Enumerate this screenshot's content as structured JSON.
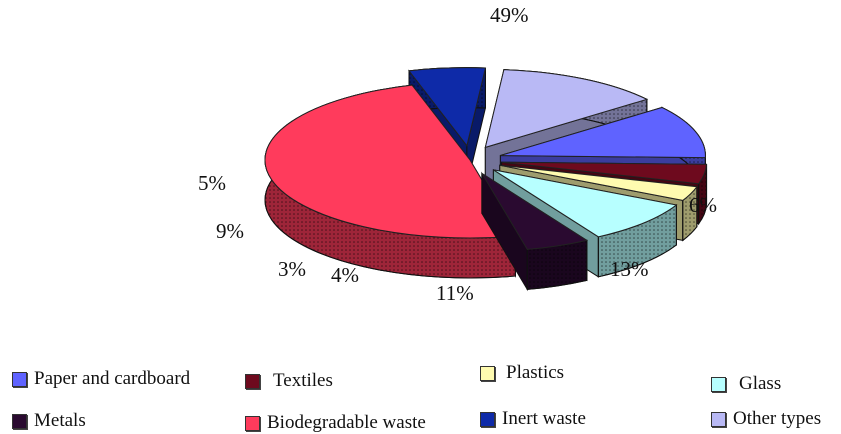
{
  "chart_data": {
    "type": "pie",
    "title": "",
    "slices": [
      {
        "name": "Paper and cardboard",
        "value": 11,
        "label": "11%",
        "color": "#5f63ff"
      },
      {
        "name": "Textiles",
        "value": 4,
        "label": "4%",
        "color": "#6e0a1e"
      },
      {
        "name": "Plastics",
        "value": 3,
        "label": "3%",
        "color": "#fffbb0"
      },
      {
        "name": "Glass",
        "value": 9,
        "label": "9%",
        "color": "#b7ffff"
      },
      {
        "name": "Metals",
        "value": 5,
        "label": "5%",
        "color": "#2a0a30"
      },
      {
        "name": "Biodegradable waste",
        "value": 49,
        "label": "49%",
        "color": "#ff3b5c"
      },
      {
        "name": "Inert waste",
        "value": 6,
        "label": "6%",
        "color": "#0e2aa8"
      },
      {
        "name": "Other types",
        "value": 13,
        "label": "13%",
        "color": "#b9b9f5"
      }
    ],
    "legend_position": "bottom",
    "style": "3d-exploded-pie"
  }
}
